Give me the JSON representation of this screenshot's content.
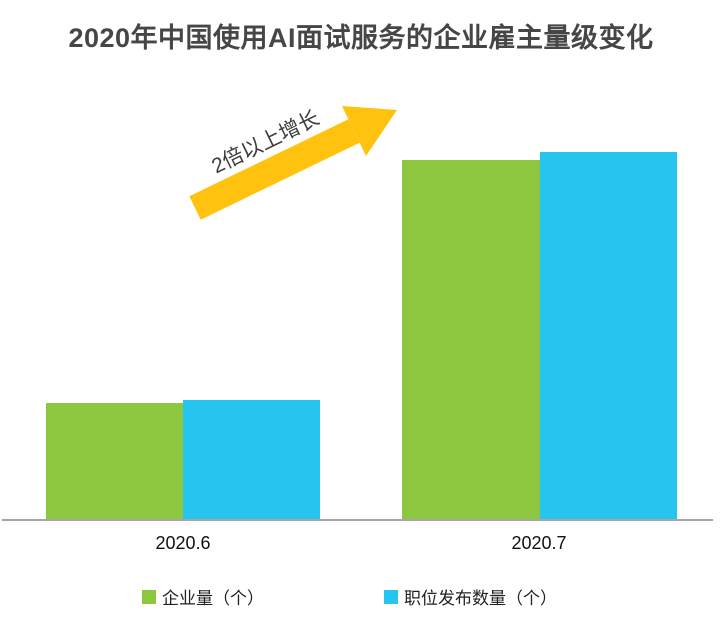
{
  "chart_data": {
    "type": "bar",
    "title": "2020年中国使用AI面试服务的企业雇主量级变化",
    "categories": [
      "2020.6",
      "2020.7"
    ],
    "series": [
      {
        "name": "企业量（个）",
        "color": "#8dc63f",
        "values": [
          1.0,
          3.08
        ]
      },
      {
        "name": "职位发布数量（个）",
        "color": "#25c5f0",
        "values": [
          1.03,
          3.15
        ]
      }
    ],
    "annotation": "2倍以上增长",
    "arrow_color": "#ffc20e",
    "value_axis_visible": false,
    "values_unit": "relative (no numeric axis shown; 2020.7 is about 3x the 2020.6 level)",
    "ylim": [
      0,
      3.68
    ],
    "grid": false,
    "legend_position": "bottom",
    "axis_line_color": "#a6a6a6",
    "title_color": "#464646"
  }
}
